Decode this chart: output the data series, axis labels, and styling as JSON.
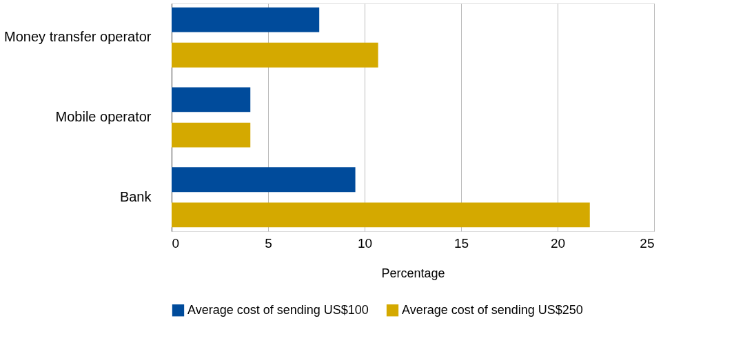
{
  "chart_data": {
    "type": "bar",
    "orientation": "horizontal",
    "xlabel": "Percentage",
    "categories": [
      "Money transfer operator",
      "Mobile operator",
      "Bank"
    ],
    "series": [
      {
        "name": "Average cost of sending US$100",
        "color": "#004b9b",
        "values": [
          7.65,
          4.08,
          9.52
        ]
      },
      {
        "name": "Average cost of sending US$250",
        "color": "#d4a900",
        "values": [
          10.7,
          4.08,
          21.67
        ]
      }
    ],
    "xlim": [
      0,
      25
    ],
    "xticks": [
      0,
      5,
      10,
      15,
      20,
      25
    ],
    "grid": "x",
    "legend": "bottom"
  }
}
